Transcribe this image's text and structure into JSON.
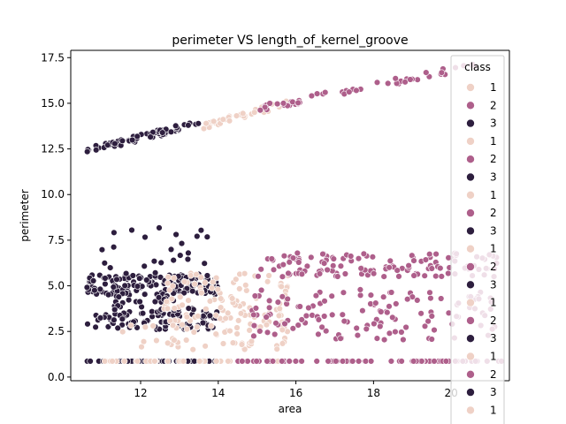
{
  "chart_data": {
    "type": "scatter",
    "title": "perimeter VS length_of_kernel_groove",
    "xlabel": "area",
    "ylabel": "perimeter",
    "xlim": [
      10.2,
      21.5
    ],
    "ylim": [
      -0.2,
      17.9
    ],
    "xticks": [
      12,
      14,
      16,
      18,
      20
    ],
    "yticks": [
      0.0,
      2.5,
      5.0,
      7.5,
      10.0,
      12.5,
      15.0,
      17.5
    ],
    "ytick_labels": [
      "0.0",
      "2.5",
      "5.0",
      "7.5",
      "10.0",
      "12.5",
      "15.0",
      "17.5"
    ],
    "xtick_labels": [
      "12",
      "14",
      "16",
      "18",
      "20"
    ],
    "grid": false,
    "legend": {
      "title": "class",
      "placement": "right",
      "entries": [
        "1",
        "2",
        "3",
        "1",
        "2",
        "3",
        "1",
        "2",
        "3",
        "1",
        "2",
        "3",
        "1",
        "2",
        "3",
        "1",
        "2",
        "3",
        "1"
      ]
    },
    "palette": {
      "1": "#efd1c6",
      "2": "#ae5f8b",
      "3": "#2d1e3e"
    },
    "series": [
      {
        "name": "1",
        "clusters": [
          {
            "y_of_x": "linear",
            "x_from": 13.6,
            "x_to": 15.9,
            "y_from": 13.75,
            "y_to": 15.1,
            "count": 45
          },
          {
            "y": 0.87,
            "x_from": 11.0,
            "x_to": 16.0,
            "count": 40
          },
          {
            "y_from": 1.5,
            "y_to": 5.8,
            "x_from": 12.6,
            "x_to": 15.9,
            "count": 150
          },
          {
            "y_from": 1.6,
            "y_to": 3.2,
            "x_from": 11.2,
            "x_to": 13.0,
            "count": 10
          }
        ]
      },
      {
        "name": "2",
        "clusters": [
          {
            "y_of_x": "linear",
            "x_from": 15.0,
            "x_to": 20.7,
            "y_from": 14.7,
            "y_to": 17.1,
            "count": 55
          },
          {
            "y": 0.87,
            "x_from": 14.5,
            "x_to": 21.3,
            "count": 70
          },
          {
            "y_from": 5.5,
            "y_to": 6.8,
            "x_from": 15.0,
            "x_to": 21.2,
            "count": 130
          },
          {
            "y_from": 2.0,
            "y_to": 4.8,
            "x_from": 14.8,
            "x_to": 21.2,
            "count": 130
          }
        ]
      },
      {
        "name": "3",
        "clusters": [
          {
            "y_of_x": "linear",
            "x_from": 10.6,
            "x_to": 13.5,
            "y_from": 12.4,
            "y_to": 13.9,
            "count": 70
          },
          {
            "y": 0.87,
            "x_from": 10.6,
            "x_to": 14.0,
            "count": 70
          },
          {
            "y_from": 4.5,
            "y_to": 5.6,
            "x_from": 10.6,
            "x_to": 14.0,
            "count": 140
          },
          {
            "y_from": 2.6,
            "y_to": 3.6,
            "x_from": 10.6,
            "x_to": 14.0,
            "count": 90
          },
          {
            "y_from": 5.6,
            "y_to": 8.5,
            "x_from": 11.0,
            "x_to": 13.8,
            "count": 25
          },
          {
            "y_from": 3.6,
            "y_to": 4.5,
            "x_from": 11.3,
            "x_to": 13.6,
            "count": 30
          }
        ]
      }
    ]
  }
}
